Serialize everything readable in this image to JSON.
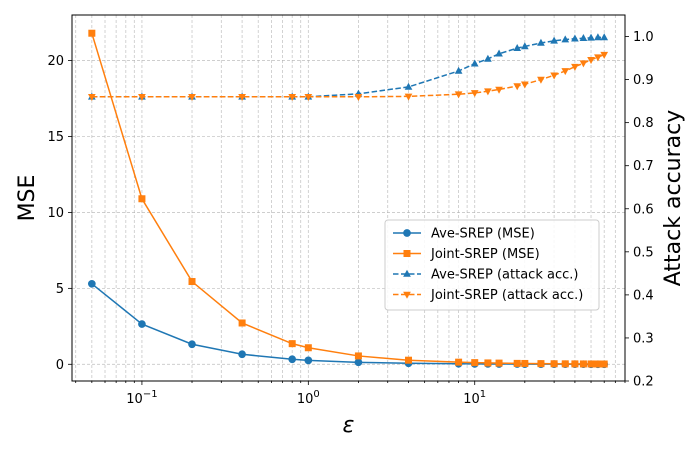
{
  "chart_data": {
    "type": "line",
    "x": [
      0.05,
      0.1,
      0.2,
      0.4,
      0.8,
      1.0,
      2.0,
      4.0,
      8.0,
      10.0,
      12.0,
      14.0,
      18.0,
      20.0,
      25.0,
      30.0,
      35.0,
      40.0,
      45.0,
      50.0,
      55.0,
      60.0
    ],
    "xscale": "log",
    "xlim": [
      0.038,
      80
    ],
    "x_ticks": [
      {
        "value": 0.1,
        "base": "10",
        "exp": "−1"
      },
      {
        "value": 1,
        "base": "10",
        "exp": "0"
      },
      {
        "value": 10,
        "base": "10",
        "exp": "1"
      }
    ],
    "xlabel": "ε",
    "ylabel_left": "MSE",
    "ylabel_right": "Attack accuracy",
    "ylim_left": [
      -1.1,
      23
    ],
    "ylim_right": [
      0.2,
      1.05
    ],
    "yticks_left": [
      "0",
      "5",
      "10",
      "15",
      "20"
    ],
    "yticks_left_values": [
      0,
      5,
      10,
      15,
      20
    ],
    "yticks_right": [
      "0.2",
      "0.3",
      "0.4",
      "0.5",
      "0.6",
      "0.7",
      "0.8",
      "0.9",
      "1.0"
    ],
    "yticks_right_values": [
      0.2,
      0.3,
      0.4,
      0.5,
      0.6,
      0.7,
      0.8,
      0.9,
      1.0
    ],
    "grid": true,
    "legend_position": "center-right",
    "series": [
      {
        "name": "Ave-SREP (MSE)",
        "axis": "left",
        "color": "#1f77b4",
        "linestyle": "solid",
        "marker": "circle",
        "values": [
          5.3,
          2.65,
          1.32,
          0.66,
          0.33,
          0.26,
          0.13,
          0.07,
          0.033,
          0.026,
          0.022,
          0.019,
          0.015,
          0.013,
          0.011,
          0.009,
          0.008,
          0.007,
          0.006,
          0.005,
          0.005,
          0.004
        ]
      },
      {
        "name": "Joint-SREP (MSE)",
        "axis": "left",
        "color": "#ff7f0e",
        "linestyle": "solid",
        "marker": "square",
        "values": [
          21.8,
          10.9,
          5.45,
          2.72,
          1.36,
          1.09,
          0.55,
          0.27,
          0.14,
          0.11,
          0.09,
          0.078,
          0.06,
          0.055,
          0.044,
          0.036,
          0.031,
          0.027,
          0.024,
          0.022,
          0.02,
          0.018
        ]
      },
      {
        "name": "Ave-SREP (attack acc.)",
        "axis": "right",
        "color": "#1f77b4",
        "linestyle": "dashed",
        "marker": "triangle-up",
        "values": [
          0.86,
          0.86,
          0.86,
          0.86,
          0.86,
          0.86,
          0.867,
          0.883,
          0.92,
          0.937,
          0.948,
          0.96,
          0.973,
          0.977,
          0.985,
          0.99,
          0.993,
          0.995,
          0.996,
          0.997,
          0.998,
          0.998
        ]
      },
      {
        "name": "Joint-SREP (attack acc.)",
        "axis": "right",
        "color": "#ff7f0e",
        "linestyle": "dashed",
        "marker": "triangle-down",
        "values": [
          0.86,
          0.86,
          0.86,
          0.86,
          0.86,
          0.86,
          0.86,
          0.861,
          0.866,
          0.869,
          0.873,
          0.877,
          0.885,
          0.889,
          0.9,
          0.91,
          0.92,
          0.93,
          0.938,
          0.946,
          0.952,
          0.958
        ]
      }
    ]
  }
}
